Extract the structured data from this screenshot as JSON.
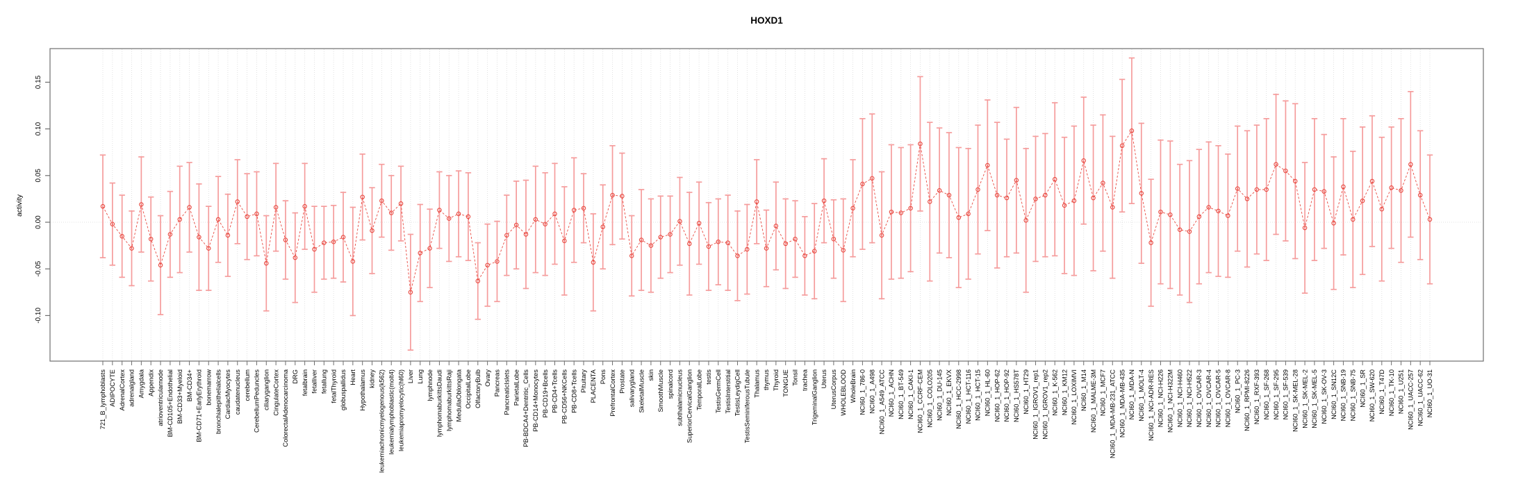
{
  "chart_data": {
    "type": "line",
    "subtype": "errorbar-ci-plot",
    "title": "HOXD1",
    "xlabel": "",
    "ylabel": "activity",
    "ylim": [
      -0.149,
      0.186
    ],
    "yticks": [
      0.15,
      0.1,
      0.05,
      0.0,
      -0.05,
      -0.1
    ],
    "ytick_labels": [
      "0.15",
      "0.10",
      "0.05",
      "0.00",
      "-0.05",
      "-0.10"
    ],
    "grid": "dotted vertical line per category; dotted horizontal line at 0.00",
    "legend": "none",
    "marker": "open-circle",
    "line_style": "dashed",
    "colors": {
      "error_bar": "#f59c9c",
      "point": "#e8483f",
      "line": "#e8483f",
      "grid": "#d9d9d9",
      "axis": "#6e6e6e",
      "text": "#000000",
      "background": "#ffffff"
    },
    "categories": [
      "721_B_lymphoblasts",
      "ADIPOCYTE",
      "AdrenalCortex",
      "adrenalgland",
      "Amygdala",
      "Appendix",
      "atrioventricularnode",
      "BM-CD105+Endothelial",
      "BM-CD33+Myeloid",
      "BM-CD34+",
      "BM-CD71+EarlyErythroid",
      "bonemarrow",
      "bronchialepithelialcells",
      "CardiacMyocytes",
      "caudatenucleus",
      "cerebellum",
      "CerebellumPeduncles",
      "ciliaryganglion",
      "CingulateCortex",
      "ColorectalAdenocarcinoma",
      "DRG",
      "fetalbrain",
      "fetalliver",
      "fetallung",
      "fetalThyroid",
      "globuspallidus",
      "Heart",
      "Hypothalamus",
      "kidney",
      "leukemiachronicmyelogenous(k562)",
      "leukemialymphoblastic(molt4)",
      "leukemiapromyelocytic(hl60)",
      "Liver",
      "Lung",
      "lymphnode",
      "lymphomaburkittsDaudi",
      "lymphomaburkittsRaji",
      "MedullaOblongata",
      "OccipitalLobe",
      "OlfactoryBulb",
      "Ovary",
      "Pancreas",
      "PancreaticIslets",
      "ParietalLobe",
      "PB-BDCA4+Dentritic_Cells",
      "PB-CD14+Monocytes",
      "PB-CD19+Bcells",
      "PB-CD4+Tcells",
      "PB-CD56+NKCells",
      "PB-CD8+Tcells",
      "Pituitary",
      "PLACENTA",
      "Pons",
      "PrefrontalCortex",
      "Prostate",
      "salivarygland",
      "SkeletalMuscle",
      "skin",
      "SmoothMuscle",
      "spinalcord",
      "subthalamicnucleus",
      "SuperiorCervicalGanglion",
      "TemporalLobe",
      "testis",
      "TestisGermCell",
      "TestisInterstitial",
      "TestisLeydigCell",
      "TestisSeminiferousTubule",
      "Thalamus",
      "thymus",
      "Thyroid",
      "TONGUE",
      "Tonsil",
      "trachea",
      "TrigeminalGanglion",
      "Uterus",
      "UterusCorpus",
      "WHOLEBLOOD",
      "WholeBrain",
      "NCI60_1_786-0",
      "NCI60_1_A498",
      "NCI60_1_A549_ATCC",
      "NCI60_1_ACHN",
      "NCI60_1_BT-549",
      "NCI60_1_CAKI-1",
      "NCI60_1_CCRF-CEM",
      "NCI60_1_COLO205",
      "NCI60_1_DU-145",
      "NCI60_1_EKVX",
      "NCI60_1_HCC-2998",
      "NCI60_1_HCT-116",
      "NCI60_1_HCT-15",
      "NCI60_1_HL-60",
      "NCI60_1_HOP-62",
      "NCI60_1_HOP-92",
      "NCI60_1_HS578T",
      "NCI60_1_HT29",
      "NCI60_1_IGROV1_rep1",
      "NCI60_1_IGROV1_rep2",
      "NCI60_1_K-562",
      "NCI60_1_KM12",
      "NCI60_1_LOXIMVI",
      "NCI60_1_M14",
      "NCI60_1_MALME-3M",
      "NCI60_1_MCF7",
      "NCI60_1_MDA-MB-231_ATCC",
      "NCI60_1_MDA-MB-435",
      "NCI60_1_MDA-N",
      "NCI60_1_MOLT-4",
      "NCI60_1_NCI-ADR-RES",
      "NCI60_1_NCI-H226",
      "NCI60_1_NCI-H322M",
      "NCI60_1_NCI-H460",
      "NCI60_1_NCI-H522",
      "NCI60_1_OVCAR-3",
      "NCI60_1_OVCAR-4",
      "NCI60_1_OVCAR-5",
      "NCI60_1_OVCAR-8",
      "NCI60_1_PC-3",
      "NCI60_1_RPMI-8226",
      "NCI60_1_RXF-393",
      "NCI60_1_SF-268",
      "NCI60_1_SF-295",
      "NCI60_1_SF-539",
      "NCI60_1_SK-MEL-28",
      "NCI60_1_SK-MEL-2",
      "NCI60_1_SK-MEL-5",
      "NCI60_1_SK-OV-3",
      "NCI60_1_SN12C",
      "NCI60_1_SNB-19",
      "NCI60_1_SNB-75",
      "NCI60_1_SR",
      "NCI60_1_SW-620",
      "NCI60_1_T47D",
      "NCI60_1_TK-10",
      "NCI60_1_U251",
      "NCI60_1_UACC-257",
      "NCI60_1_UACC-62",
      "NCI60_1_UO-31"
    ],
    "values": [
      0.017,
      -0.002,
      -0.015,
      -0.028,
      0.019,
      -0.018,
      -0.046,
      -0.013,
      0.003,
      0.016,
      -0.016,
      -0.028,
      0.003,
      -0.014,
      0.022,
      0.006,
      0.009,
      -0.044,
      0.016,
      -0.019,
      -0.038,
      0.017,
      -0.029,
      -0.022,
      -0.021,
      -0.016,
      -0.042,
      0.027,
      -0.009,
      0.023,
      0.01,
      0.02,
      -0.075,
      -0.033,
      -0.028,
      0.013,
      0.004,
      0.009,
      0.006,
      -0.063,
      -0.046,
      -0.042,
      -0.014,
      -0.003,
      -0.013,
      0.003,
      -0.002,
      0.009,
      -0.02,
      0.013,
      0.015,
      -0.043,
      -0.005,
      0.029,
      0.028,
      -0.036,
      -0.019,
      -0.025,
      -0.016,
      -0.013,
      0.001,
      -0.023,
      -0.001,
      -0.026,
      -0.021,
      -0.022,
      -0.036,
      -0.029,
      0.022,
      -0.028,
      -0.004,
      -0.023,
      -0.018,
      -0.036,
      -0.031,
      0.023,
      -0.018,
      -0.03,
      0.015,
      0.041,
      0.047,
      -0.014,
      0.011,
      0.01,
      0.015,
      0.084,
      0.022,
      0.034,
      0.029,
      0.005,
      0.009,
      0.035,
      0.061,
      0.029,
      0.026,
      0.045,
      0.002,
      0.025,
      0.029,
      0.046,
      0.018,
      0.023,
      0.066,
      0.026,
      0.042,
      0.016,
      0.082,
      0.098,
      0.031,
      -0.022,
      0.011,
      0.008,
      -0.008,
      -0.01,
      0.006,
      0.016,
      0.012,
      0.007,
      0.036,
      0.025,
      0.035,
      0.035,
      0.062,
      0.055,
      0.044,
      -0.006,
      0.035,
      0.033,
      -0.001,
      0.038,
      0.003,
      0.023,
      0.044,
      0.014,
      0.037,
      0.034,
      0.062,
      0.029,
      0.003
    ],
    "errors": [
      0.055,
      0.044,
      0.044,
      0.04,
      0.051,
      0.045,
      0.053,
      0.046,
      0.057,
      0.048,
      0.057,
      0.045,
      0.046,
      0.044,
      0.045,
      0.046,
      0.045,
      0.051,
      0.047,
      0.042,
      0.048,
      0.046,
      0.046,
      0.039,
      0.039,
      0.048,
      0.058,
      0.046,
      0.046,
      0.039,
      0.04,
      0.04,
      0.062,
      0.052,
      0.042,
      0.041,
      0.046,
      0.046,
      0.047,
      0.041,
      0.044,
      0.043,
      0.043,
      0.047,
      0.058,
      0.057,
      0.055,
      0.054,
      0.058,
      0.056,
      0.037,
      0.052,
      0.045,
      0.053,
      0.046,
      0.043,
      0.054,
      0.05,
      0.044,
      0.041,
      0.047,
      0.055,
      0.044,
      0.047,
      0.046,
      0.051,
      0.048,
      0.048,
      0.045,
      0.041,
      0.047,
      0.048,
      0.041,
      0.042,
      0.051,
      0.045,
      0.042,
      0.055,
      0.052,
      0.07,
      0.069,
      0.068,
      0.072,
      0.07,
      0.068,
      0.072,
      0.085,
      0.067,
      0.067,
      0.075,
      0.07,
      0.069,
      0.07,
      0.078,
      0.063,
      0.078,
      0.077,
      0.067,
      0.066,
      0.082,
      0.073,
      0.08,
      0.068,
      0.078,
      0.073,
      0.076,
      0.071,
      0.078,
      0.075,
      0.068,
      0.077,
      0.079,
      0.07,
      0.076,
      0.072,
      0.07,
      0.07,
      0.066,
      0.067,
      0.073,
      0.069,
      0.076,
      0.075,
      0.075,
      0.083,
      0.07,
      0.076,
      0.061,
      0.071,
      0.073,
      0.073,
      0.079,
      0.07,
      0.077,
      0.065,
      0.077,
      0.078,
      0.069,
      0.069
    ]
  }
}
